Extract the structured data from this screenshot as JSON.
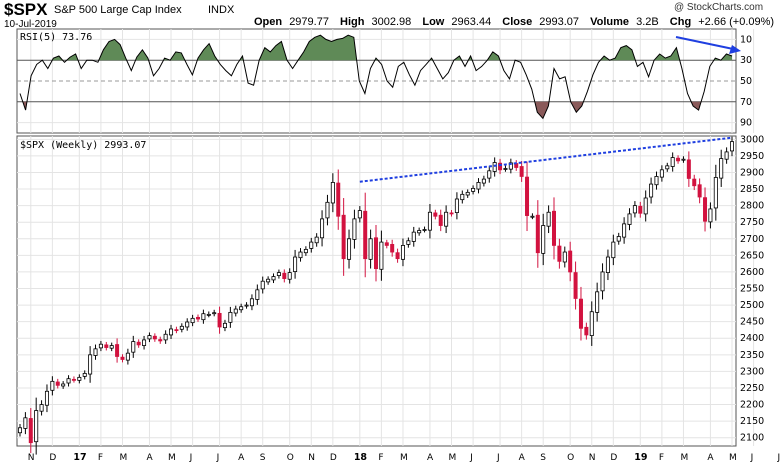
{
  "header": {
    "ticker": "$SPX",
    "name": "S&P 500 Large Cap Index",
    "exchange": "INDX",
    "date": "10-Jul-2019",
    "watermark": "@ StockCharts.com",
    "quote": {
      "open_label": "Open",
      "open": "2979.77",
      "high_label": "High",
      "high": "3002.98",
      "low_label": "Low",
      "low": "2963.44",
      "close_label": "Close",
      "close": "2993.07",
      "volume_label": "Volume",
      "volume": "3.2B",
      "chg_label": "Chg",
      "chg": "+2.66 (+0.09%)"
    }
  },
  "rsi_panel": {
    "label": "RSI(5) 73.76",
    "ticks": [
      "90",
      "70",
      "50",
      "30",
      "10"
    ],
    "overbought": 70,
    "oversold": 30,
    "arrow_color": "#1f3fe0",
    "fill_up_color": "#5f8a57",
    "fill_down_color": "#8a5a5a"
  },
  "price_panel": {
    "label": "$SPX (Weekly) 2993.07",
    "up_color": "#ffffff",
    "down_color": "#d2123f",
    "trendline_color": "#1f3fe0"
  },
  "chart_data": [
    {
      "type": "line",
      "series": [
        {
          "name": "RSI(5)",
          "values": [
            38,
            22,
            55,
            66,
            70,
            62,
            72,
            74,
            68,
            73,
            76,
            62,
            70,
            70,
            68,
            80,
            88,
            90,
            85,
            72,
            60,
            73,
            80,
            72,
            55,
            62,
            72,
            70,
            78,
            77,
            66,
            56,
            72,
            80,
            86,
            74,
            66,
            60,
            55,
            66,
            74,
            48,
            46,
            70,
            82,
            78,
            84,
            88,
            70,
            62,
            70,
            78,
            88,
            92,
            94,
            90,
            88,
            90,
            91,
            94,
            92,
            50,
            38,
            62,
            72,
            66,
            50,
            44,
            64,
            68,
            56,
            46,
            60,
            66,
            72,
            62,
            52,
            58,
            70,
            74,
            64,
            74,
            60,
            64,
            70,
            78,
            74,
            60,
            52,
            70,
            68,
            56,
            42,
            20,
            14,
            26,
            62,
            52,
            54,
            30,
            20,
            26,
            40,
            56,
            68,
            74,
            70,
            72,
            82,
            84,
            80,
            64,
            68,
            54,
            70,
            76,
            72,
            74,
            82,
            62,
            38,
            26,
            22,
            40,
            64,
            72,
            70,
            76,
            74
          ]
        }
      ],
      "ylim": [
        0,
        100
      ],
      "yticks": [
        10,
        30,
        50,
        70,
        90
      ]
    },
    {
      "type": "candlestick",
      "x": [
        "Nov 2016",
        "Dec 2016",
        "Jan 2017",
        "Feb 2017",
        "Mar 2017",
        "Apr 2017",
        "May 2017",
        "Jun 2017",
        "Jul 2017",
        "Aug 2017",
        "Sep 2017",
        "Oct 2017",
        "Nov 2017",
        "Dec 2017",
        "Jan 2018",
        "Feb 2018",
        "Mar 2018",
        "Apr 2018",
        "May 2018",
        "Jun 2018",
        "Jul 2018",
        "Aug 2018",
        "Sep 2018",
        "Oct 2018",
        "Nov 2018",
        "Dec 2018",
        "Jan 2019",
        "Feb 2019",
        "Mar 2019",
        "Apr 2019",
        "May 2019",
        "Jun 2019",
        "Jul 2019"
      ],
      "x_tick_labels": [
        "N",
        "D",
        "17",
        "F",
        "M",
        "A",
        "M",
        "J",
        "J",
        "A",
        "S",
        "O",
        "N",
        "D",
        "18",
        "F",
        "M",
        "A",
        "M",
        "J",
        "J",
        "A",
        "S",
        "O",
        "N",
        "D",
        "19",
        "F",
        "M",
        "A",
        "M",
        "J",
        "J"
      ],
      "year_labels": [
        "17",
        "18",
        "19"
      ],
      "ylim": [
        2075,
        3010
      ],
      "yticks": [
        2100,
        2150,
        2200,
        2250,
        2300,
        2350,
        2400,
        2450,
        2500,
        2550,
        2600,
        2650,
        2700,
        2750,
        2800,
        2850,
        2900,
        2950,
        3000
      ],
      "closes": [
        2130,
        2160,
        2085,
        2182,
        2200,
        2240,
        2270,
        2258,
        2262,
        2278,
        2275,
        2282,
        2294,
        2350,
        2368,
        2382,
        2372,
        2378,
        2345,
        2336,
        2355,
        2390,
        2380,
        2395,
        2408,
        2398,
        2392,
        2412,
        2428,
        2424,
        2436,
        2449,
        2460,
        2458,
        2474,
        2472,
        2477,
        2434,
        2445,
        2478,
        2488,
        2495,
        2500,
        2519,
        2546,
        2572,
        2578,
        2586,
        2598,
        2580,
        2598,
        2645,
        2660,
        2668,
        2690,
        2705,
        2760,
        2810,
        2870,
        2768,
        2640,
        2700,
        2760,
        2785,
        2640,
        2700,
        2610,
        2690,
        2680,
        2660,
        2640,
        2680,
        2694,
        2720,
        2725,
        2728,
        2780,
        2768,
        2740,
        2780,
        2776,
        2820,
        2834,
        2840,
        2852,
        2870,
        2880,
        2905,
        2930,
        2908,
        2912,
        2929,
        2915,
        2888,
        2770,
        2768,
        2658,
        2740,
        2780,
        2680,
        2632,
        2660,
        2600,
        2520,
        2430,
        2410,
        2480,
        2540,
        2600,
        2645,
        2690,
        2707,
        2745,
        2775,
        2800,
        2777,
        2823,
        2865,
        2888,
        2908,
        2920,
        2945,
        2935,
        2940,
        2882,
        2860,
        2826,
        2753,
        2790,
        2885,
        2942,
        2962,
        2993
      ]
    },
    {
      "type": "line",
      "name": "trendline",
      "x": [
        "Jan 2018",
        "Jul 2019"
      ],
      "values": [
        2872,
        3005
      ]
    }
  ]
}
